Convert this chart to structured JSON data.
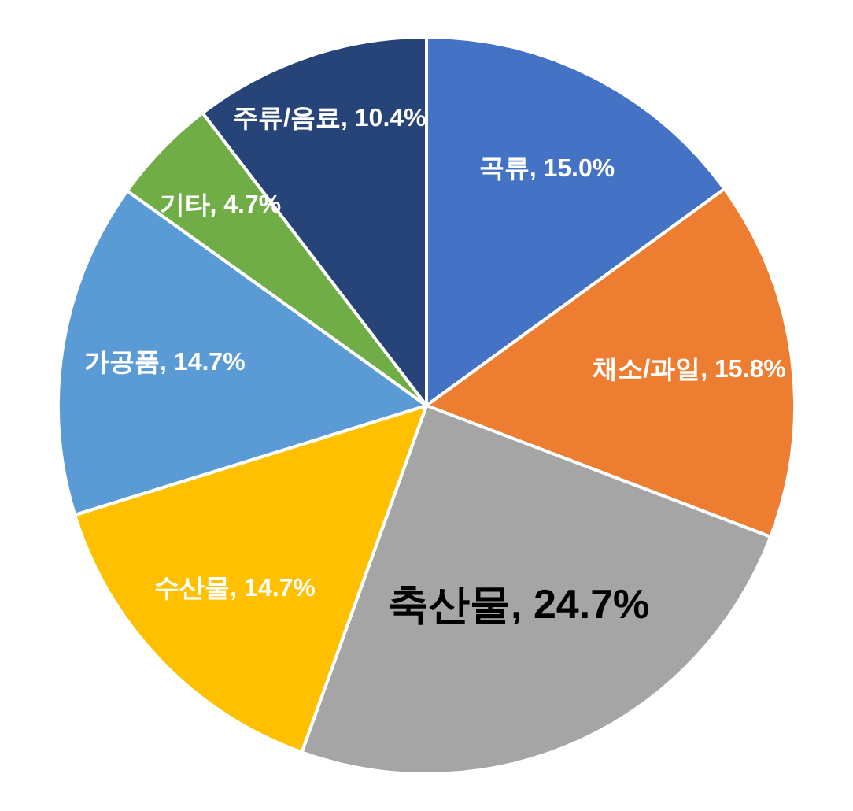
{
  "chart_data": {
    "type": "pie",
    "categories": [
      "곡류",
      "채소/과일",
      "축산물",
      "수산물",
      "가공품",
      "기타",
      "주류/음료"
    ],
    "values": [
      15.0,
      15.8,
      24.7,
      14.7,
      14.7,
      4.7,
      10.4
    ],
    "value_labels": [
      "15.0%",
      "15.8%",
      "24.7%",
      "14.7%",
      "14.7%",
      "4.7%",
      "10.4%"
    ],
    "colors": [
      "#4472c4",
      "#ed7d31",
      "#a5a5a5",
      "#ffc000",
      "#5b9bd5",
      "#70ad47",
      "#264478"
    ],
    "data_labels": true,
    "legend": false
  }
}
